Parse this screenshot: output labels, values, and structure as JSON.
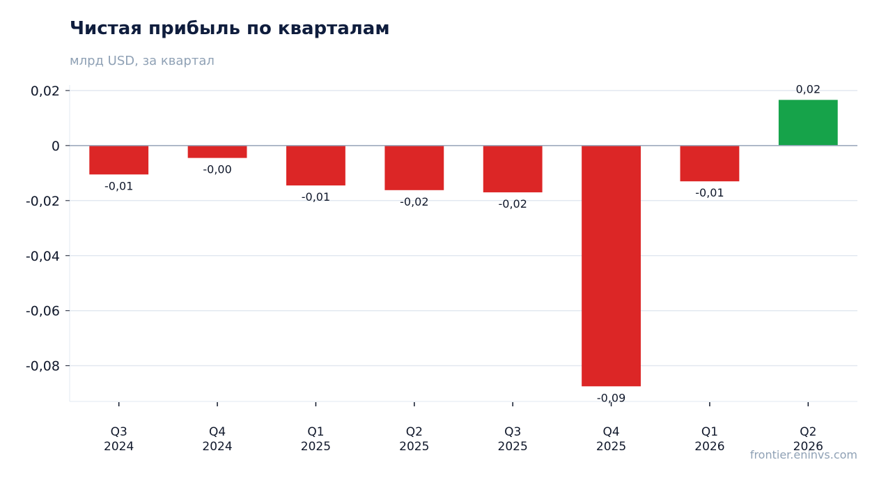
{
  "header": {
    "title": "Чистая прибыль по кварталам",
    "subtitle": "млрд USD, за квартал"
  },
  "footer": {
    "watermark": "frontier.eninvs.com"
  },
  "colors": {
    "negative": "#dc2626",
    "positive": "#16a34a",
    "grid": "#e2e8f0",
    "zero_line": "#94a3b8",
    "axis_text": "#0f172a"
  },
  "chart_data": {
    "type": "bar",
    "title": "Чистая прибыль по кварталам",
    "subtitle": "млрд USD, за квартал",
    "categories": [
      [
        "Q3",
        "2024"
      ],
      [
        "Q4",
        "2024"
      ],
      [
        "Q1",
        "2025"
      ],
      [
        "Q2",
        "2025"
      ],
      [
        "Q3",
        "2025"
      ],
      [
        "Q4",
        "2025"
      ],
      [
        "Q1",
        "2026"
      ],
      [
        "Q2",
        "2026"
      ]
    ],
    "values": [
      -0.0105,
      -0.0045,
      -0.0145,
      -0.0162,
      -0.017,
      -0.0875,
      -0.013,
      0.0166
    ],
    "value_labels": [
      "-0,01",
      "-0,00",
      "-0,01",
      "-0,02",
      "-0,02",
      "-0,09",
      "-0,01",
      "0,02"
    ],
    "yticks": [
      0.02,
      0,
      -0.02,
      -0.04,
      -0.06,
      -0.08
    ],
    "ytick_labels": [
      "0,02",
      "0",
      "-0,02",
      "-0,04",
      "-0,06",
      "-0,08"
    ],
    "ylim": [
      -0.093,
      0.022
    ],
    "grid": true,
    "legend": false
  }
}
